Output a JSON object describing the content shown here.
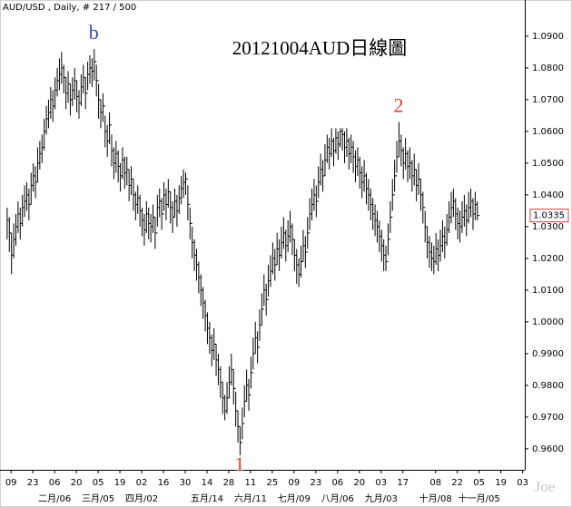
{
  "chart_data": {
    "type": "ohlc",
    "header": "AUD/USD , Daily, # 217 / 500",
    "title": "20121004AUD日線圖",
    "watermark": "Joe",
    "color": "#000000",
    "annotations": [
      {
        "text": "b",
        "x": 40,
        "y": 1.086,
        "color": "#4040c8"
      },
      {
        "text": "2",
        "x": 180,
        "y": 1.063,
        "color": "#e03a3a"
      },
      {
        "text": "1",
        "x": 107,
        "y": 0.958,
        "color": "#e03a3a"
      }
    ],
    "xlim": [
      -1,
      238
    ],
    "ylim": [
      0.9534,
      1.1014
    ],
    "yticks": [
      {
        "value": 0.96,
        "label": "0.9600"
      },
      {
        "value": 0.97,
        "label": "0.9700"
      },
      {
        "value": 0.98,
        "label": "0.9800"
      },
      {
        "value": 0.99,
        "label": "0.9900"
      },
      {
        "value": 1.0,
        "label": "1.0000"
      },
      {
        "value": 1.01,
        "label": "1.0100"
      },
      {
        "value": 1.02,
        "label": "1.0200"
      },
      {
        "value": 1.03,
        "label": "1.0300"
      },
      {
        "value": 1.04,
        "label": "1.0400"
      },
      {
        "value": 1.05,
        "label": "1.0500"
      },
      {
        "value": 1.06,
        "label": "1.0600"
      },
      {
        "value": 1.07,
        "label": "1.0700"
      },
      {
        "value": 1.08,
        "label": "1.0800"
      },
      {
        "value": 1.09,
        "label": "1.0900"
      }
    ],
    "xticks": [
      {
        "value": 2,
        "label": "09"
      },
      {
        "value": 12,
        "label": "23"
      },
      {
        "value": 22,
        "label": "06"
      },
      {
        "value": 32,
        "label": "20"
      },
      {
        "value": 42,
        "label": "05"
      },
      {
        "value": 52,
        "label": "19"
      },
      {
        "value": 62,
        "label": "02"
      },
      {
        "value": 72,
        "label": "16"
      },
      {
        "value": 82,
        "label": "30"
      },
      {
        "value": 92,
        "label": "14"
      },
      {
        "value": 102,
        "label": "28"
      },
      {
        "value": 112,
        "label": "11"
      },
      {
        "value": 122,
        "label": "25"
      },
      {
        "value": 132,
        "label": "09"
      },
      {
        "value": 142,
        "label": "23"
      },
      {
        "value": 152,
        "label": "06"
      },
      {
        "value": 162,
        "label": "20"
      },
      {
        "value": 172,
        "label": "03"
      },
      {
        "value": 182,
        "label": "17"
      },
      {
        "value": 197,
        "label": "08"
      },
      {
        "value": 207,
        "label": "22"
      },
      {
        "value": 217,
        "label": "05"
      },
      {
        "value": 227,
        "label": "19"
      },
      {
        "value": 237,
        "label": "03"
      }
    ],
    "month_labels": [
      {
        "value": 22,
        "label": "二月/06"
      },
      {
        "value": 42,
        "label": "三月/05"
      },
      {
        "value": 62,
        "label": "四月/02"
      },
      {
        "value": 92,
        "label": "五月/14"
      },
      {
        "value": 112,
        "label": "六月/11"
      },
      {
        "value": 132,
        "label": "七月/09"
      },
      {
        "value": 152,
        "label": "八月/06"
      },
      {
        "value": 172,
        "label": "九月/03"
      },
      {
        "value": 197,
        "label": "十月/08"
      },
      {
        "value": 217,
        "label": "十一月/05"
      }
    ],
    "high": [
      1.036,
      1.033,
      1.028,
      1.031,
      1.034,
      1.038,
      1.036,
      1.04,
      1.043,
      1.044,
      1.042,
      1.047,
      1.05,
      1.049,
      1.055,
      1.057,
      1.059,
      1.064,
      1.068,
      1.07,
      1.074,
      1.073,
      1.077,
      1.08,
      1.083,
      1.085,
      1.081,
      1.077,
      1.079,
      1.075,
      1.077,
      1.08,
      1.076,
      1.073,
      1.078,
      1.081,
      1.077,
      1.082,
      1.084,
      1.083,
      1.086,
      1.081,
      1.075,
      1.07,
      1.072,
      1.065,
      1.062,
      1.066,
      1.059,
      1.055,
      1.057,
      1.054,
      1.05,
      1.055,
      1.052,
      1.052,
      1.048,
      1.049,
      1.045,
      1.041,
      1.043,
      1.04,
      1.036,
      1.034,
      1.038,
      1.036,
      1.034,
      1.037,
      1.033,
      1.04,
      1.042,
      1.039,
      1.044,
      1.042,
      1.045,
      1.041,
      1.038,
      1.042,
      1.04,
      1.043,
      1.046,
      1.048,
      1.047,
      1.043,
      1.036,
      1.03,
      1.026,
      1.023,
      1.019,
      1.015,
      1.011,
      1.007,
      1.003,
      1.0,
      0.996,
      0.998,
      0.993,
      0.99,
      0.986,
      0.981,
      0.977,
      0.981,
      0.986,
      0.99,
      0.985,
      0.978,
      0.972,
      0.967,
      0.973,
      0.98,
      0.985,
      0.982,
      0.989,
      0.995,
      1.0,
      0.997,
      1.004,
      1.009,
      1.015,
      1.012,
      1.018,
      1.021,
      1.025,
      1.023,
      1.028,
      1.026,
      1.03,
      1.033,
      1.029,
      1.032,
      1.035,
      1.031,
      1.026,
      1.023,
      1.02,
      1.024,
      1.029,
      1.027,
      1.033,
      1.039,
      1.042,
      1.045,
      1.043,
      1.049,
      1.053,
      1.051,
      1.056,
      1.059,
      1.058,
      1.061,
      1.058,
      1.061,
      1.06,
      1.061,
      1.061,
      1.06,
      1.061,
      1.058,
      1.059,
      1.057,
      1.054,
      1.055,
      1.052,
      1.049,
      1.051,
      1.047,
      1.045,
      1.042,
      1.039,
      1.037,
      1.035,
      1.032,
      1.029,
      1.026,
      1.024,
      1.031,
      1.038,
      1.045,
      1.051,
      1.057,
      1.063,
      1.059,
      1.055,
      1.058,
      1.054,
      1.055,
      1.051,
      1.053,
      1.048,
      1.05,
      1.045,
      1.041,
      1.035,
      1.03,
      1.027,
      1.025,
      1.024,
      1.028,
      1.026,
      1.029,
      1.032,
      1.03,
      1.034,
      1.038,
      1.041,
      1.042,
      1.039,
      1.036,
      1.035,
      1.038,
      1.04,
      1.037,
      1.041,
      1.042,
      1.039,
      1.041,
      1.038
    ],
    "low": [
      1.026,
      1.022,
      1.015,
      1.02,
      1.024,
      1.028,
      1.026,
      1.03,
      1.033,
      1.035,
      1.032,
      1.037,
      1.041,
      1.039,
      1.044,
      1.048,
      1.05,
      1.054,
      1.059,
      1.061,
      1.064,
      1.063,
      1.067,
      1.071,
      1.073,
      1.075,
      1.072,
      1.067,
      1.069,
      1.065,
      1.068,
      1.07,
      1.066,
      1.064,
      1.068,
      1.072,
      1.067,
      1.073,
      1.075,
      1.074,
      1.076,
      1.071,
      1.064,
      1.061,
      1.063,
      1.055,
      1.052,
      1.056,
      1.049,
      1.045,
      1.047,
      1.044,
      1.041,
      1.045,
      1.042,
      1.043,
      1.038,
      1.04,
      1.035,
      1.032,
      1.034,
      1.03,
      1.027,
      1.024,
      1.028,
      1.026,
      1.025,
      1.028,
      1.023,
      1.03,
      1.033,
      1.029,
      1.035,
      1.032,
      1.036,
      1.031,
      1.028,
      1.033,
      1.03,
      1.034,
      1.037,
      1.039,
      1.04,
      1.032,
      1.026,
      1.02,
      1.016,
      1.013,
      1.009,
      1.005,
      1.001,
      0.997,
      0.993,
      0.99,
      0.986,
      0.988,
      0.983,
      0.98,
      0.976,
      0.971,
      0.969,
      0.971,
      0.976,
      0.98,
      0.974,
      0.967,
      0.962,
      0.958,
      0.963,
      0.97,
      0.975,
      0.972,
      0.979,
      0.985,
      0.99,
      0.987,
      0.994,
      0.999,
      1.005,
      1.002,
      1.008,
      1.011,
      1.015,
      1.013,
      1.018,
      1.016,
      1.02,
      1.023,
      1.019,
      1.022,
      1.025,
      1.021,
      1.016,
      1.012,
      1.011,
      1.014,
      1.019,
      1.017,
      1.023,
      1.029,
      1.032,
      1.035,
      1.033,
      1.039,
      1.043,
      1.041,
      1.046,
      1.05,
      1.048,
      1.052,
      1.049,
      1.053,
      1.051,
      1.055,
      1.054,
      1.05,
      1.052,
      1.048,
      1.05,
      1.047,
      1.044,
      1.046,
      1.042,
      1.039,
      1.041,
      1.037,
      1.035,
      1.032,
      1.029,
      1.027,
      1.025,
      1.022,
      1.019,
      1.016,
      1.016,
      1.021,
      1.028,
      1.035,
      1.041,
      1.047,
      1.052,
      1.049,
      1.045,
      1.048,
      1.044,
      1.045,
      1.041,
      1.043,
      1.038,
      1.04,
      1.035,
      1.031,
      1.025,
      1.02,
      1.017,
      1.016,
      1.015,
      1.018,
      1.016,
      1.019,
      1.022,
      1.02,
      1.024,
      1.028,
      1.031,
      1.033,
      1.029,
      1.026,
      1.025,
      1.028,
      1.03,
      1.027,
      1.031,
      1.033,
      1.029,
      1.032,
      1.032
    ],
    "close": [
      1.032,
      1.028,
      1.021,
      1.026,
      1.03,
      1.034,
      1.031,
      1.036,
      1.038,
      1.04,
      1.037,
      1.043,
      1.046,
      1.044,
      1.05,
      1.053,
      1.055,
      1.06,
      1.064,
      1.066,
      1.07,
      1.068,
      1.073,
      1.076,
      1.078,
      1.08,
      1.077,
      1.072,
      1.075,
      1.07,
      1.073,
      1.076,
      1.071,
      1.069,
      1.074,
      1.077,
      1.072,
      1.078,
      1.08,
      1.079,
      1.082,
      1.076,
      1.07,
      1.066,
      1.068,
      1.06,
      1.057,
      1.062,
      1.054,
      1.05,
      1.053,
      1.049,
      1.046,
      1.051,
      1.047,
      1.048,
      1.043,
      1.045,
      1.04,
      1.037,
      1.039,
      1.035,
      1.032,
      1.029,
      1.034,
      1.031,
      1.03,
      1.033,
      1.028,
      1.036,
      1.038,
      1.034,
      1.04,
      1.037,
      1.041,
      1.036,
      1.033,
      1.038,
      1.035,
      1.039,
      1.042,
      1.044,
      1.045,
      1.037,
      1.031,
      1.025,
      1.021,
      1.018,
      1.014,
      1.01,
      1.006,
      1.002,
      0.998,
      0.995,
      0.991,
      0.993,
      0.988,
      0.985,
      0.981,
      0.976,
      0.972,
      0.976,
      0.981,
      0.985,
      0.979,
      0.972,
      0.967,
      0.962,
      0.968,
      0.975,
      0.98,
      0.977,
      0.984,
      0.99,
      0.995,
      0.992,
      0.999,
      1.004,
      1.01,
      1.007,
      1.013,
      1.016,
      1.02,
      1.018,
      1.023,
      1.021,
      1.025,
      1.028,
      1.024,
      1.027,
      1.03,
      1.026,
      1.021,
      1.018,
      1.015,
      1.019,
      1.024,
      1.022,
      1.028,
      1.034,
      1.037,
      1.04,
      1.038,
      1.044,
      1.048,
      1.046,
      1.051,
      1.055,
      1.053,
      1.057,
      1.054,
      1.058,
      1.056,
      1.06,
      1.059,
      1.055,
      1.057,
      1.053,
      1.055,
      1.052,
      1.049,
      1.051,
      1.047,
      1.044,
      1.046,
      1.042,
      1.04,
      1.037,
      1.034,
      1.032,
      1.03,
      1.027,
      1.024,
      1.021,
      1.019,
      1.026,
      1.033,
      1.04,
      1.046,
      1.052,
      1.057,
      1.054,
      1.05,
      1.053,
      1.049,
      1.05,
      1.046,
      1.048,
      1.043,
      1.045,
      1.04,
      1.036,
      1.03,
      1.025,
      1.022,
      1.02,
      1.019,
      1.023,
      1.021,
      1.024,
      1.027,
      1.025,
      1.029,
      1.033,
      1.036,
      1.038,
      1.034,
      1.031,
      1.03,
      1.033,
      1.035,
      1.032,
      1.036,
      1.038,
      1.034,
      1.037,
      1.0335
    ]
  }
}
